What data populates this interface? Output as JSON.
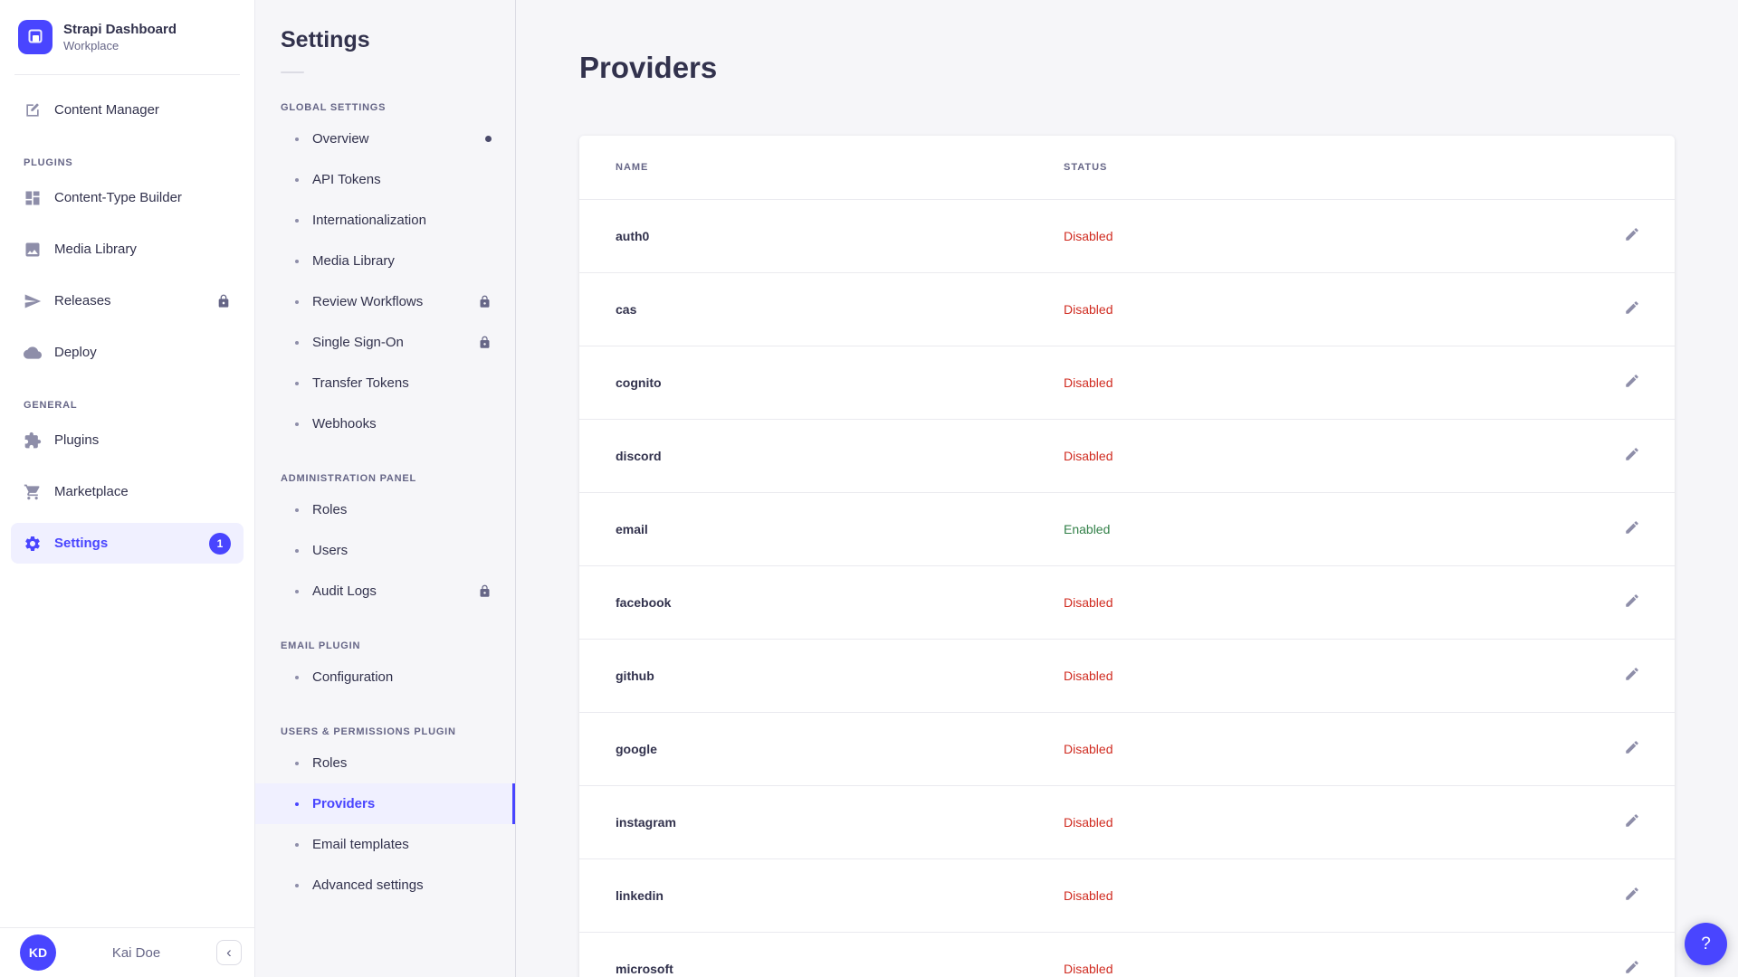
{
  "brand": {
    "title": "Strapi Dashboard",
    "subtitle": "Workplace"
  },
  "sidebar": {
    "top_item": {
      "label": "Content Manager",
      "icon": "pen-icon"
    },
    "sections": [
      {
        "label": "PLUGINS",
        "items": [
          {
            "label": "Content-Type Builder",
            "icon": "layout-icon"
          },
          {
            "label": "Media Library",
            "icon": "image-icon"
          },
          {
            "label": "Releases",
            "icon": "paper-plane-icon",
            "locked": true
          },
          {
            "label": "Deploy",
            "icon": "cloud-icon"
          }
        ]
      },
      {
        "label": "GENERAL",
        "items": [
          {
            "label": "Plugins",
            "icon": "puzzle-icon"
          },
          {
            "label": "Marketplace",
            "icon": "cart-icon"
          },
          {
            "label": "Settings",
            "icon": "gear-icon",
            "active": true,
            "badge": "1"
          }
        ]
      }
    ]
  },
  "user": {
    "initials": "KD",
    "name": "Kai Doe",
    "collapse_icon": "‹"
  },
  "subnav": {
    "title": "Settings",
    "sections": [
      {
        "label": "GLOBAL SETTINGS",
        "items": [
          {
            "label": "Overview",
            "notification_dot": true
          },
          {
            "label": "API Tokens"
          },
          {
            "label": "Internationalization"
          },
          {
            "label": "Media Library"
          },
          {
            "label": "Review Workflows",
            "locked": true
          },
          {
            "label": "Single Sign-On",
            "locked": true
          },
          {
            "label": "Transfer Tokens"
          },
          {
            "label": "Webhooks"
          }
        ]
      },
      {
        "label": "ADMINISTRATION PANEL",
        "items": [
          {
            "label": "Roles"
          },
          {
            "label": "Users"
          },
          {
            "label": "Audit Logs",
            "locked": true
          }
        ]
      },
      {
        "label": "EMAIL PLUGIN",
        "items": [
          {
            "label": "Configuration"
          }
        ]
      },
      {
        "label": "USERS & PERMISSIONS PLUGIN",
        "items": [
          {
            "label": "Roles"
          },
          {
            "label": "Providers",
            "active": true
          },
          {
            "label": "Email templates"
          },
          {
            "label": "Advanced settings"
          }
        ]
      }
    ]
  },
  "main": {
    "title": "Providers",
    "table": {
      "columns": [
        "NAME",
        "STATUS"
      ],
      "enabled_value": "Enabled",
      "row_action_icon": "pencil-icon",
      "rows": [
        {
          "name": "auth0",
          "status": "Disabled"
        },
        {
          "name": "cas",
          "status": "Disabled"
        },
        {
          "name": "cognito",
          "status": "Disabled"
        },
        {
          "name": "discord",
          "status": "Disabled"
        },
        {
          "name": "email",
          "status": "Enabled"
        },
        {
          "name": "facebook",
          "status": "Disabled"
        },
        {
          "name": "github",
          "status": "Disabled"
        },
        {
          "name": "google",
          "status": "Disabled"
        },
        {
          "name": "instagram",
          "status": "Disabled"
        },
        {
          "name": "linkedin",
          "status": "Disabled"
        },
        {
          "name": "microsoft",
          "status": "Disabled"
        }
      ]
    }
  },
  "help_button": {
    "label": "?"
  },
  "colors": {
    "primary": "#4945ff",
    "primary_light": "#f0f0ff",
    "status_disabled": "#d02b20",
    "status_enabled": "#328048"
  }
}
